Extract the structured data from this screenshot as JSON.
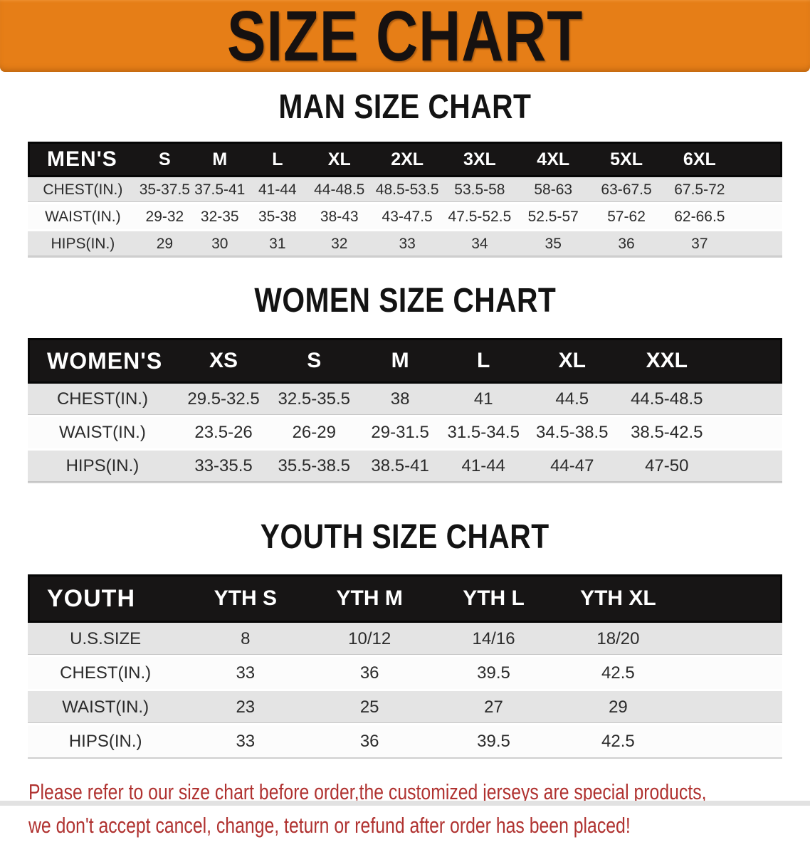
{
  "banner": {
    "title": "SIZE CHART"
  },
  "sections": [
    {
      "heading": "MAN SIZE CHART",
      "label": "MEN'S",
      "columns": [
        "S",
        "M",
        "L",
        "XL",
        "2XL",
        "3XL",
        "4XL",
        "5XL",
        "6XL"
      ],
      "rows": [
        {
          "label": "CHEST(IN.)",
          "values": [
            "35-37.5",
            "37.5-41",
            "41-44",
            "44-48.5",
            "48.5-53.5",
            "53.5-58",
            "58-63",
            "63-67.5",
            "67.5-72"
          ]
        },
        {
          "label": "WAIST(IN.)",
          "values": [
            "29-32",
            "32-35",
            "35-38",
            "38-43",
            "43-47.5",
            "47.5-52.5",
            "52.5-57",
            "57-62",
            "62-66.5"
          ]
        },
        {
          "label": "HIPS(IN.)",
          "values": [
            "29",
            "30",
            "31",
            "32",
            "33",
            "34",
            "35",
            "36",
            "37"
          ]
        }
      ]
    },
    {
      "heading": "WOMEN SIZE CHART",
      "label": "WOMEN'S",
      "columns": [
        "XS",
        "S",
        "M",
        "L",
        "XL",
        "XXL"
      ],
      "rows": [
        {
          "label": "CHEST(IN.)",
          "values": [
            "29.5-32.5",
            "32.5-35.5",
            "38",
            "41",
            "44.5",
            "44.5-48.5"
          ]
        },
        {
          "label": "WAIST(IN.)",
          "values": [
            "23.5-26",
            "26-29",
            "29-31.5",
            "31.5-34.5",
            "34.5-38.5",
            "38.5-42.5"
          ]
        },
        {
          "label": "HIPS(IN.)",
          "values": [
            "33-35.5",
            "35.5-38.5",
            "38.5-41",
            "41-44",
            "44-47",
            "47-50"
          ]
        }
      ]
    },
    {
      "heading": "YOUTH SIZE CHART",
      "label": "YOUTH",
      "columns": [
        "YTH S",
        "YTH M",
        "YTH L",
        "YTH XL"
      ],
      "rows": [
        {
          "label": "U.S.SIZE",
          "values": [
            "8",
            "10/12",
            "14/16",
            "18/20"
          ]
        },
        {
          "label": "CHEST(IN.)",
          "values": [
            "33",
            "36",
            "39.5",
            "42.5"
          ]
        },
        {
          "label": "WAIST(IN.)",
          "values": [
            "23",
            "25",
            "27",
            "29"
          ]
        },
        {
          "label": "HIPS(IN.)",
          "values": [
            "33",
            "36",
            "39.5",
            "42.5"
          ]
        }
      ]
    }
  ],
  "disclaimer": {
    "line1": "Please refer to our size chart before order,the customized jerseys are special products,",
    "line2": "we don't accept cancel, change, teturn or refund after order has been placed!"
  },
  "colors": {
    "banner_bg": "#e67e17",
    "banner_text": "#161110",
    "header_bar_bg": "#171515",
    "header_bar_text": "#ffffff",
    "row_gray": "#e4e4e4",
    "row_white": "#fcfcfc",
    "disclaimer_red": "#b03230"
  }
}
